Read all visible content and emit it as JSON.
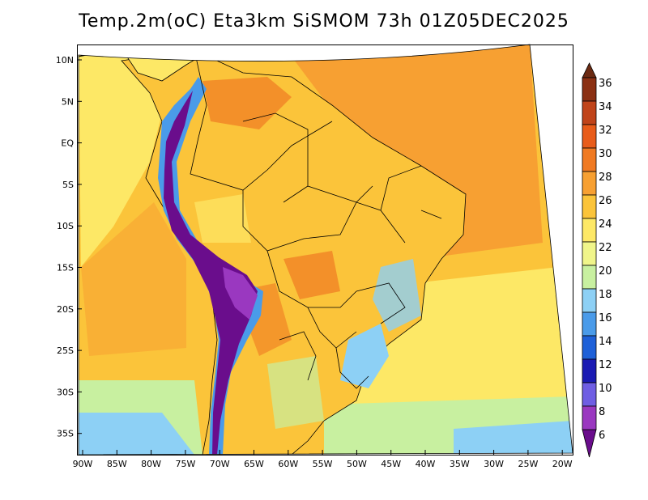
{
  "title": "Temp.2m(oC) Eta3km SiSMOM 73h 01Z05DEC2025",
  "lat_labels": [
    "10N",
    "5N",
    "EQ",
    "5S",
    "10S",
    "15S",
    "20S",
    "25S",
    "30S",
    "35S"
  ],
  "lon_labels": [
    "90W",
    "85W",
    "80W",
    "75W",
    "70W",
    "65W",
    "60W",
    "55W",
    "50W",
    "45W",
    "40W",
    "35W",
    "30W",
    "25W",
    "20W"
  ],
  "colorbar": {
    "labels": [
      "6",
      "8",
      "10",
      "12",
      "14",
      "16",
      "18",
      "20",
      "22",
      "24",
      "26",
      "28",
      "30",
      "32",
      "34",
      "36"
    ],
    "colors": [
      "#6a0d8c",
      "#9a38c0",
      "#6f5ee3",
      "#1a1ab3",
      "#1e60d8",
      "#4a9be9",
      "#8dd0f5",
      "#c8f0a0",
      "#f0f58a",
      "#fde866",
      "#fbc43a",
      "#f7a032",
      "#f07a22",
      "#e85c1a",
      "#c0441a",
      "#8b3013",
      "#6b2a12"
    ]
  }
}
